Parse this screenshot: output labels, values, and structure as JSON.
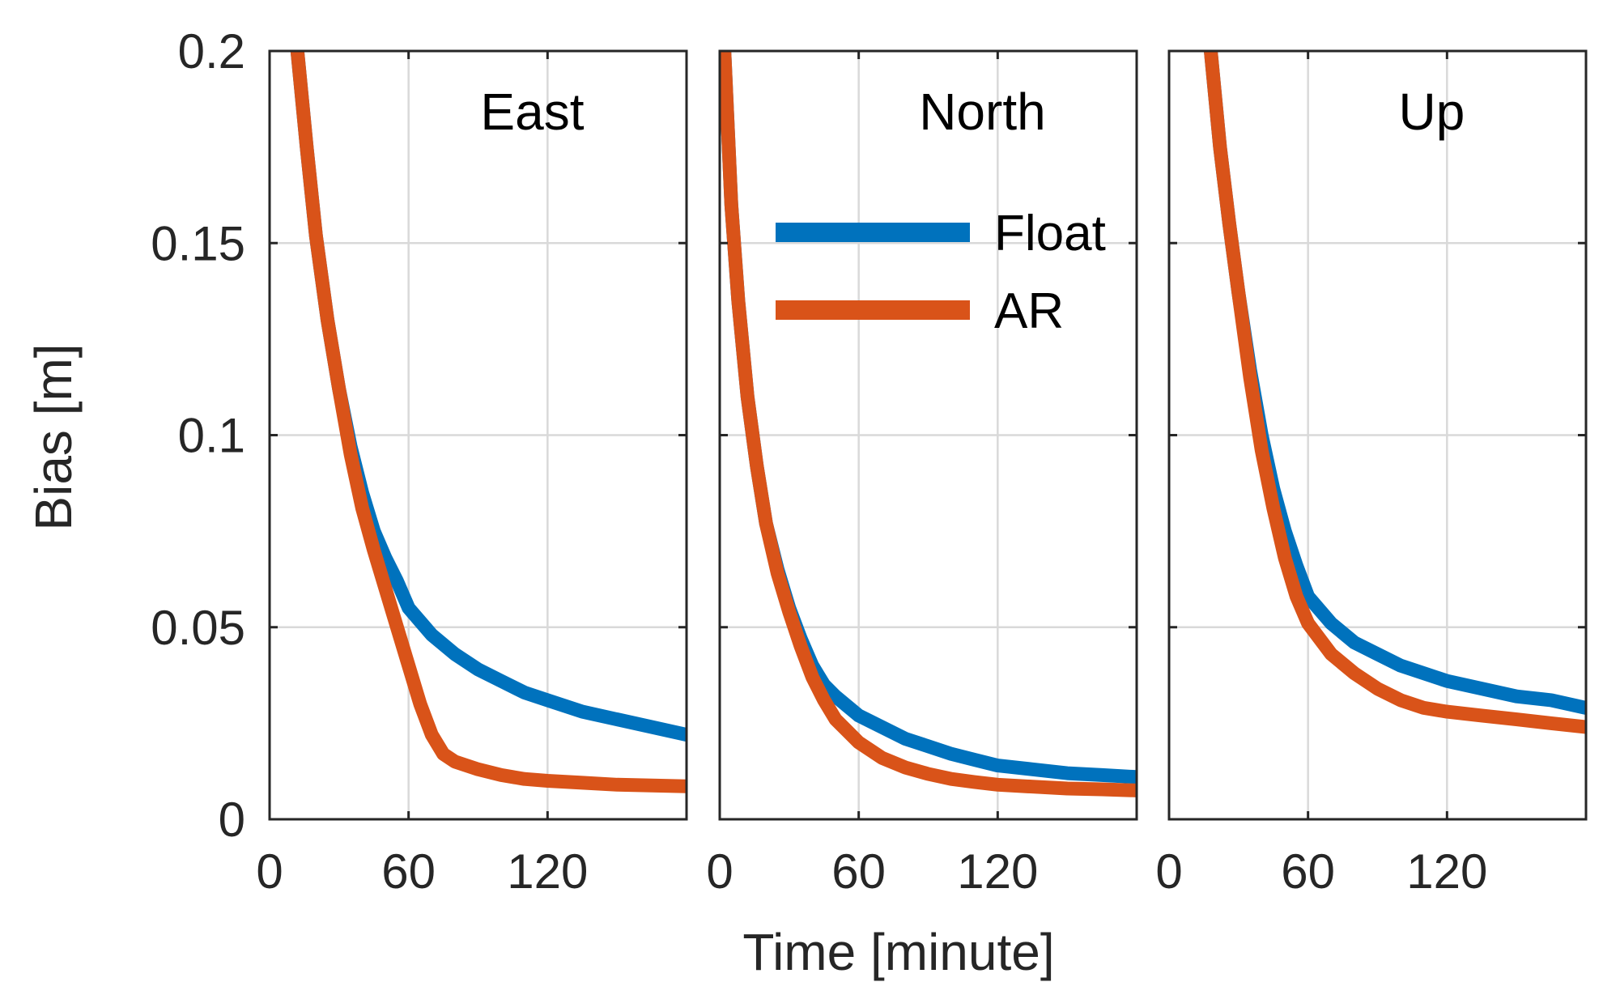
{
  "chart_data": {
    "type": "line",
    "ylabel": "Bias [m]",
    "xlabel": "Time [minute]",
    "ylim": [
      0,
      0.2
    ],
    "yticks": [
      0,
      0.05,
      0.1,
      0.15,
      0.2
    ],
    "ytick_labels": [
      "0",
      "0.05",
      "0.1",
      "0.15",
      "0.2"
    ],
    "xlim": [
      0,
      180
    ],
    "xticks": [
      0,
      60,
      120
    ],
    "xtick_labels": [
      "0",
      "60",
      "120"
    ],
    "grid": true,
    "legend": {
      "placement": "inside second panel, upper-middle",
      "entries": [
        {
          "name": "Float",
          "color": "#0072BD"
        },
        {
          "name": "AR",
          "color": "#D95319"
        }
      ]
    },
    "panels": [
      {
        "title": "East",
        "series": [
          {
            "name": "Float",
            "color": "#0072BD",
            "x": [
              12,
              16,
              20,
              25,
              30,
              35,
              40,
              45,
              50,
              55,
              60,
              70,
              80,
              90,
              100,
              110,
              120,
              135,
              150,
              165,
              180
            ],
            "y": [
              0.2,
              0.175,
              0.152,
              0.13,
              0.112,
              0.097,
              0.085,
              0.075,
              0.068,
              0.062,
              0.055,
              0.048,
              0.043,
              0.039,
              0.036,
              0.033,
              0.031,
              0.028,
              0.026,
              0.024,
              0.022
            ]
          },
          {
            "name": "AR",
            "color": "#D95319",
            "x": [
              12,
              16,
              20,
              25,
              30,
              35,
              40,
              45,
              50,
              55,
              60,
              65,
              70,
              75,
              80,
              90,
              100,
              110,
              120,
              135,
              150,
              165,
              180
            ],
            "y": [
              0.2,
              0.175,
              0.152,
              0.13,
              0.112,
              0.095,
              0.081,
              0.07,
              0.06,
              0.05,
              0.04,
              0.03,
              0.022,
              0.017,
              0.015,
              0.013,
              0.0115,
              0.0105,
              0.01,
              0.0095,
              0.009,
              0.0088,
              0.0086
            ]
          }
        ]
      },
      {
        "title": "North",
        "series": [
          {
            "name": "Float",
            "color": "#0072BD",
            "x": [
              2,
              5,
              8,
              12,
              16,
              20,
              25,
              30,
              35,
              40,
              45,
              50,
              60,
              70,
              80,
              90,
              100,
              110,
              120,
              135,
              150,
              165,
              180
            ],
            "y": [
              0.2,
              0.16,
              0.135,
              0.11,
              0.092,
              0.077,
              0.065,
              0.055,
              0.047,
              0.04,
              0.035,
              0.032,
              0.027,
              0.024,
              0.021,
              0.019,
              0.017,
              0.0155,
              0.014,
              0.013,
              0.012,
              0.0115,
              0.011
            ]
          },
          {
            "name": "AR",
            "color": "#D95319",
            "x": [
              2,
              5,
              8,
              12,
              16,
              20,
              25,
              30,
              35,
              40,
              45,
              50,
              60,
              70,
              80,
              90,
              100,
              110,
              120,
              135,
              150,
              165,
              180
            ],
            "y": [
              0.2,
              0.16,
              0.135,
              0.11,
              0.092,
              0.077,
              0.064,
              0.054,
              0.045,
              0.037,
              0.031,
              0.026,
              0.02,
              0.016,
              0.0135,
              0.0118,
              0.0105,
              0.0097,
              0.009,
              0.0085,
              0.008,
              0.0078,
              0.0075
            ]
          }
        ]
      },
      {
        "title": "Up",
        "series": [
          {
            "name": "Float",
            "color": "#0072BD",
            "x": [
              18,
              22,
              26,
              30,
              35,
              40,
              45,
              50,
              55,
              60,
              70,
              80,
              90,
              100,
              110,
              120,
              135,
              150,
              165,
              180
            ],
            "y": [
              0.2,
              0.175,
              0.155,
              0.137,
              0.117,
              0.1,
              0.086,
              0.075,
              0.066,
              0.058,
              0.051,
              0.046,
              0.043,
              0.04,
              0.038,
              0.036,
              0.034,
              0.032,
              0.031,
              0.029
            ]
          },
          {
            "name": "AR",
            "color": "#D95319",
            "x": [
              18,
              22,
              26,
              30,
              35,
              40,
              45,
              50,
              55,
              60,
              70,
              80,
              90,
              100,
              110,
              120,
              135,
              150,
              165,
              180
            ],
            "y": [
              0.2,
              0.175,
              0.155,
              0.137,
              0.115,
              0.096,
              0.081,
              0.068,
              0.058,
              0.051,
              0.043,
              0.038,
              0.034,
              0.031,
              0.029,
              0.028,
              0.027,
              0.026,
              0.025,
              0.024
            ]
          }
        ]
      }
    ]
  }
}
